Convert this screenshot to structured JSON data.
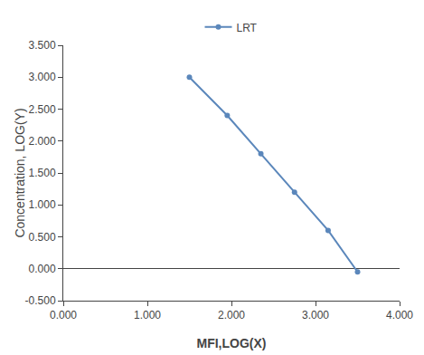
{
  "chart_data": {
    "type": "line",
    "xlabel": "MFI,LOG(X)",
    "ylabel": "Concentration, LOG(Y)",
    "x": [
      1.5,
      1.95,
      2.35,
      2.75,
      3.15,
      3.5
    ],
    "series": [
      {
        "name": "LRT",
        "color": "#5b87bb",
        "marker": "circle",
        "line_style": "solid",
        "values": [
          3.0,
          2.4,
          1.8,
          1.2,
          0.6,
          -0.05
        ]
      }
    ],
    "xlim": [
      0.0,
      4.0
    ],
    "ylim": [
      -0.5,
      3.5
    ],
    "xticks": [
      {
        "value": 0.0,
        "label": "0.000"
      },
      {
        "value": 1.0,
        "label": "1.000"
      },
      {
        "value": 2.0,
        "label": "2.000"
      },
      {
        "value": 3.0,
        "label": "3.000"
      },
      {
        "value": 4.0,
        "label": "4.000"
      }
    ],
    "yticks": [
      {
        "value": -0.5,
        "label": "-0.500"
      },
      {
        "value": 0.0,
        "label": "0.000"
      },
      {
        "value": 0.5,
        "label": "0.500"
      },
      {
        "value": 1.0,
        "label": "1.000"
      },
      {
        "value": 1.5,
        "label": "1.500"
      },
      {
        "value": 2.0,
        "label": "2.000"
      },
      {
        "value": 2.5,
        "label": "2.500"
      },
      {
        "value": 3.0,
        "label": "3.000"
      },
      {
        "value": 3.5,
        "label": "3.500"
      }
    ],
    "grid": false,
    "legend": "top"
  }
}
